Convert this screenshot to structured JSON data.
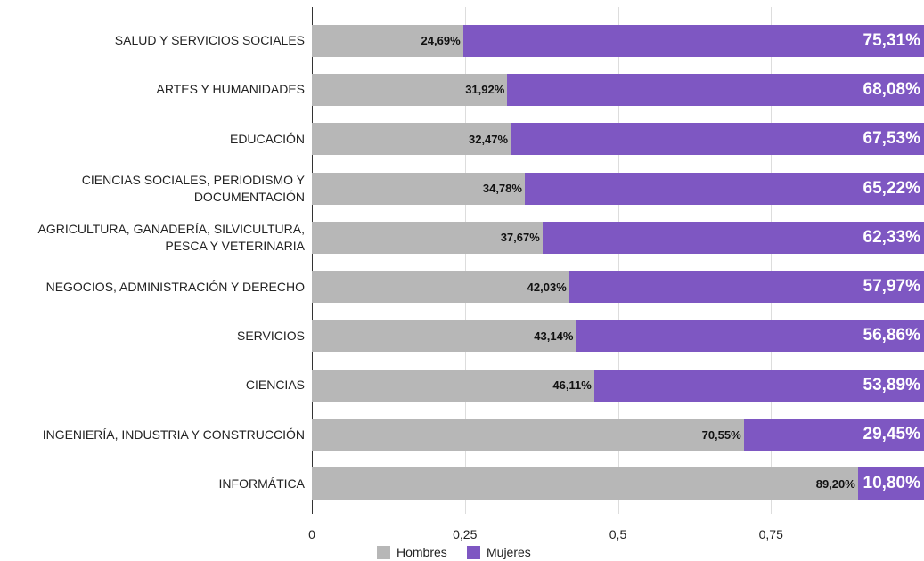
{
  "chart_data": {
    "type": "stacked_bar_horizontal",
    "categories": [
      "SALUD Y SERVICIOS SOCIALES",
      "ARTES Y HUMANIDADES",
      "EDUCACIÓN",
      "CIENCIAS SOCIALES, PERIODISMO Y\nDOCUMENTACIÓN",
      "AGRICULTURA, GANADERÍA, SILVICULTURA,\nPESCA Y VETERINARIA",
      "NEGOCIOS, ADMINISTRACIÓN Y DERECHO",
      "SERVICIOS",
      "CIENCIAS",
      "INGENIERÍA, INDUSTRIA Y CONSTRUCCIÓN",
      "INFORMÁTICA"
    ],
    "series": [
      {
        "name": "Hombres",
        "color": "#b7b7b7",
        "values": [
          0.2469,
          0.3192,
          0.3247,
          0.3478,
          0.3767,
          0.4203,
          0.4314,
          0.4611,
          0.7055,
          0.892
        ],
        "value_labels": [
          "24,69%",
          "31,92%",
          "32,47%",
          "34,78%",
          "37,67%",
          "42,03%",
          "43,14%",
          "46,11%",
          "70,55%",
          "89,20%"
        ]
      },
      {
        "name": "Mujeres",
        "color": "#7e57c2",
        "values": [
          0.7531,
          0.6808,
          0.6753,
          0.6522,
          0.6233,
          0.5797,
          0.5686,
          0.5389,
          0.2945,
          0.108
        ],
        "value_labels": [
          "75,31%",
          "68,08%",
          "67,53%",
          "65,22%",
          "62,33%",
          "57,97%",
          "56,86%",
          "53,89%",
          "29,45%",
          "10,80%"
        ]
      }
    ],
    "xlim": [
      0,
      1
    ],
    "xticks": [
      0,
      {
        "value": 0.25,
        "label": "0,25"
      },
      {
        "value": 0.5,
        "label": "0,5"
      },
      {
        "value": 0.75,
        "label": "0,75"
      }
    ],
    "grid": true,
    "legend": "bottom"
  }
}
